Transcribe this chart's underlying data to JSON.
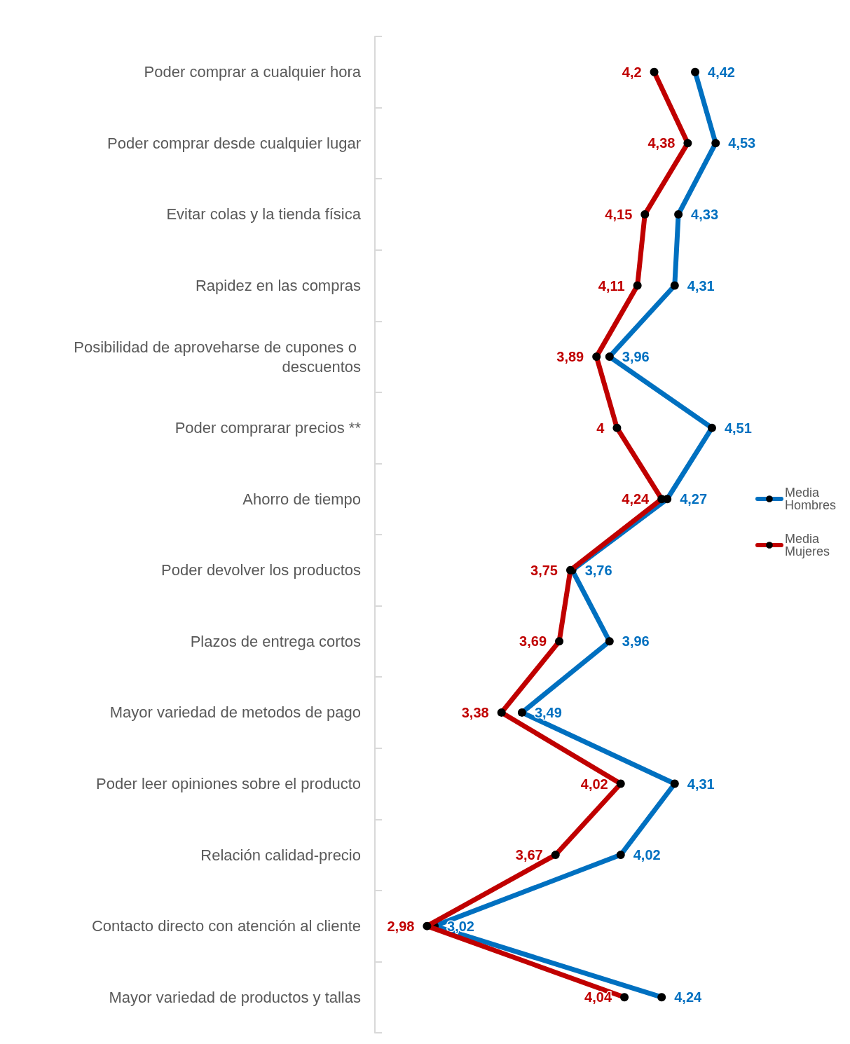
{
  "chart_data": {
    "type": "line",
    "orientation": "horizontal",
    "categories": [
      "Poder comprar a cualquier hora",
      "Poder comprar desde cualquier lugar",
      "Evitar colas y la tienda física",
      "Rapidez en las compras",
      "Posibilidad de aproveharse de cupones o descuentos",
      "Poder comprarar precios **",
      "Ahorro de tiempo",
      "Poder devolver los productos",
      "Plazos de entrega cortos",
      "Mayor variedad de metodos de pago",
      "Poder leer opiniones sobre el producto",
      "Relación calidad-precio",
      "Contacto directo con atención al cliente",
      "Mayor variedad de productos y tallas"
    ],
    "series": [
      {
        "name": "Media Hombres",
        "color": "#0070c0",
        "values": [
          4.42,
          4.53,
          4.33,
          4.31,
          3.96,
          4.51,
          4.27,
          3.76,
          3.96,
          3.49,
          4.31,
          4.02,
          3.02,
          4.24
        ],
        "value_labels": [
          "4,42",
          "4,53",
          "4,33",
          "4,31",
          "3,96",
          "4,51",
          "4,27",
          "3,76",
          "3,96",
          "3,49",
          "4,31",
          "4,02",
          "3,02",
          "4,24"
        ]
      },
      {
        "name": "Media Mujeres",
        "color": "#c00000",
        "values": [
          4.2,
          4.38,
          4.15,
          4.11,
          3.89,
          4,
          4.24,
          3.75,
          3.69,
          3.38,
          4.02,
          3.67,
          2.98,
          4.04
        ],
        "value_labels": [
          "4,2",
          "4,38",
          "4,15",
          "4,11",
          "3,89",
          "4",
          "4,24",
          "3,75",
          "3,69",
          "3,38",
          "4,02",
          "3,67",
          "2,98",
          "4,04"
        ]
      }
    ],
    "tick_labels": "y",
    "marker": "circle",
    "legend": "right",
    "grid": false
  }
}
